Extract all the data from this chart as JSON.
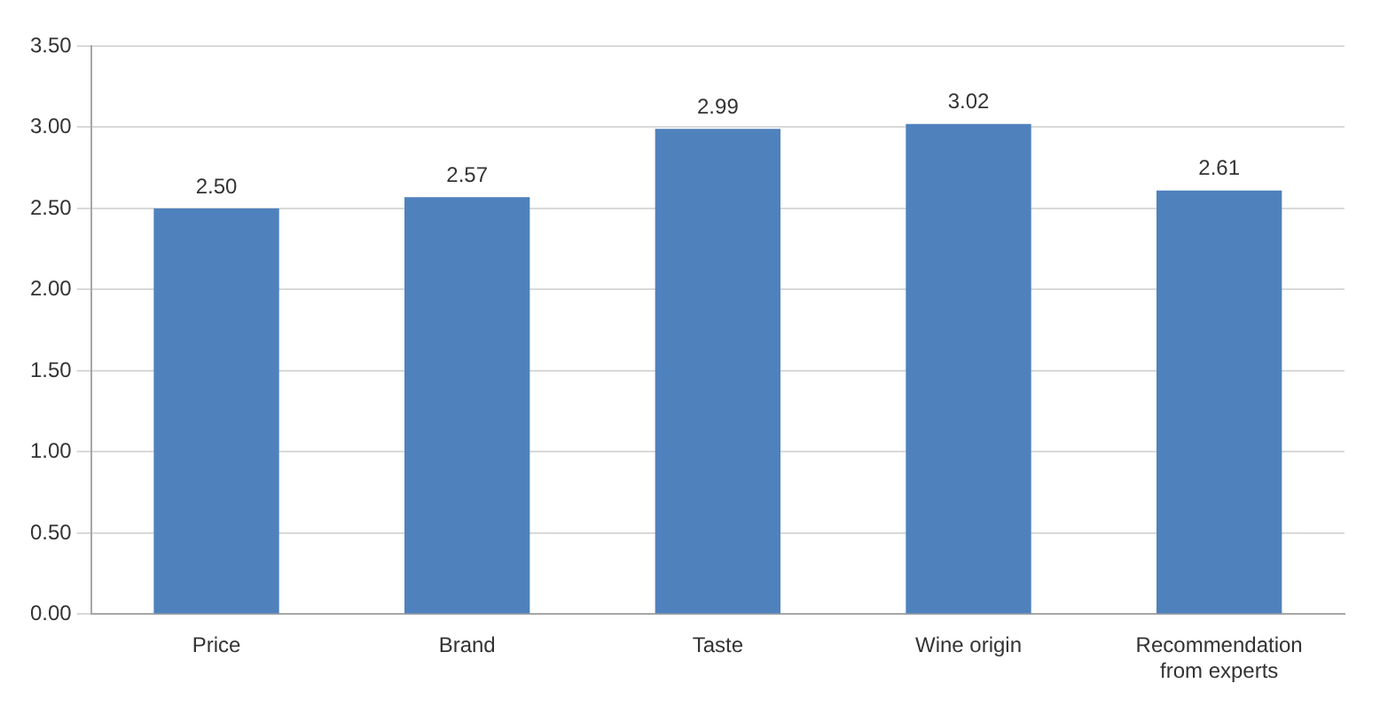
{
  "chart_data": {
    "type": "bar",
    "categories": [
      "Price",
      "Brand",
      "Taste",
      "Wine origin",
      "Recommendation from experts"
    ],
    "values": [
      2.5,
      2.57,
      2.99,
      3.02,
      2.61
    ],
    "value_labels": [
      "2.50",
      "2.57",
      "2.99",
      "3.02",
      "2.61"
    ],
    "color": "#4f81bd",
    "ylim": [
      0,
      3.5
    ],
    "yticks": [
      {
        "value": 0,
        "label": "0.00"
      },
      {
        "value": 0.5,
        "label": "0.50"
      },
      {
        "value": 1,
        "label": "1.00"
      },
      {
        "value": 1.5,
        "label": "1.50"
      },
      {
        "value": 2,
        "label": "2.00"
      },
      {
        "value": 2.5,
        "label": "2.50"
      },
      {
        "value": 3,
        "label": "3.00"
      },
      {
        "value": 3.5,
        "label": "3.50"
      }
    ],
    "grid": "y"
  }
}
